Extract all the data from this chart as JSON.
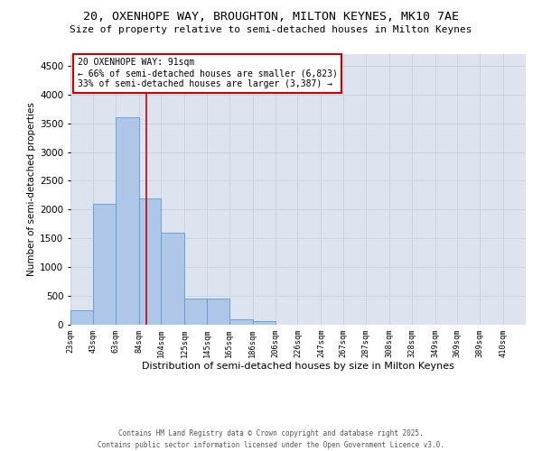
{
  "title_line1": "20, OXENHOPE WAY, BROUGHTON, MILTON KEYNES, MK10 7AE",
  "title_line2": "Size of property relative to semi-detached houses in Milton Keynes",
  "xlabel": "Distribution of semi-detached houses by size in Milton Keynes",
  "ylabel": "Number of semi-detached properties",
  "footer_line1": "Contains HM Land Registry data © Crown copyright and database right 2025.",
  "footer_line2": "Contains public sector information licensed under the Open Government Licence v3.0.",
  "property_size": 91,
  "annotation_title": "20 OXENHOPE WAY: 91sqm",
  "annotation_line1": "← 66% of semi-detached houses are smaller (6,823)",
  "annotation_line2": "33% of semi-detached houses are larger (3,387) →",
  "bar_color": "#aec6e8",
  "bar_edge_color": "#5b9bd5",
  "red_line_color": "#cc0000",
  "annotation_box_color": "#cc0000",
  "background_color": "#ffffff",
  "grid_color": "#c8d0dc",
  "bins": [
    23,
    43,
    63,
    84,
    104,
    125,
    145,
    165,
    186,
    206,
    226,
    247,
    267,
    287,
    308,
    328,
    349,
    369,
    389,
    410,
    430
  ],
  "bar_heights": [
    250,
    2100,
    3600,
    2200,
    1600,
    450,
    450,
    100,
    60,
    0,
    0,
    0,
    0,
    0,
    0,
    0,
    0,
    0,
    0,
    0
  ],
  "ylim": [
    0,
    4700
  ],
  "yticks": [
    0,
    500,
    1000,
    1500,
    2000,
    2500,
    3000,
    3500,
    4000,
    4500
  ]
}
